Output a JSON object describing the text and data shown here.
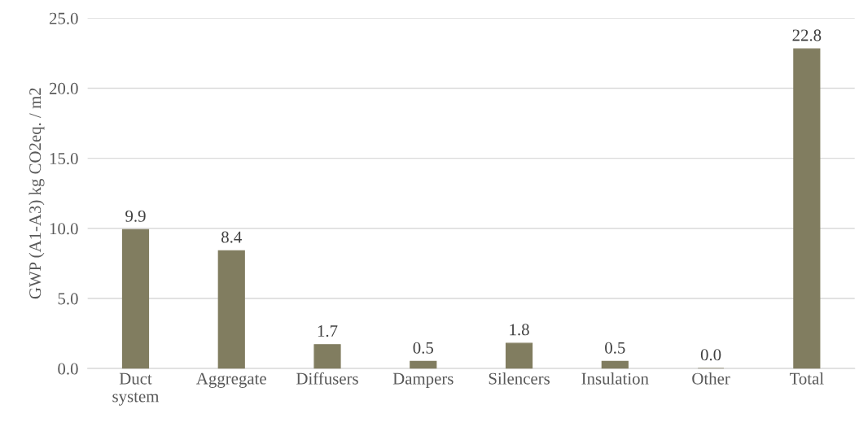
{
  "chart_data": {
    "type": "bar",
    "ylabel": "GWP (A1-A3) kg CO2eq. / m2",
    "categories": [
      "Duct\nsystem",
      "Aggregate",
      "Diffusers",
      "Dampers",
      "Silencers",
      "Insulation",
      "Other",
      "Total"
    ],
    "values": [
      9.9,
      8.4,
      1.7,
      0.5,
      1.8,
      0.5,
      0.0,
      22.8
    ],
    "value_labels": [
      "9.9",
      "8.4",
      "1.7",
      "0.5",
      "1.8",
      "0.5",
      "0.0",
      "22.8"
    ],
    "color": "#817d60",
    "ylim": [
      0,
      25
    ],
    "yticks": [
      {
        "value": 0,
        "label": "0.0"
      },
      {
        "value": 5,
        "label": "5.0"
      },
      {
        "value": 10,
        "label": "10.0"
      },
      {
        "value": 15,
        "label": "15.0"
      },
      {
        "value": 20,
        "label": "20.0"
      },
      {
        "value": 25,
        "label": "25.0"
      }
    ],
    "grid": "y"
  }
}
